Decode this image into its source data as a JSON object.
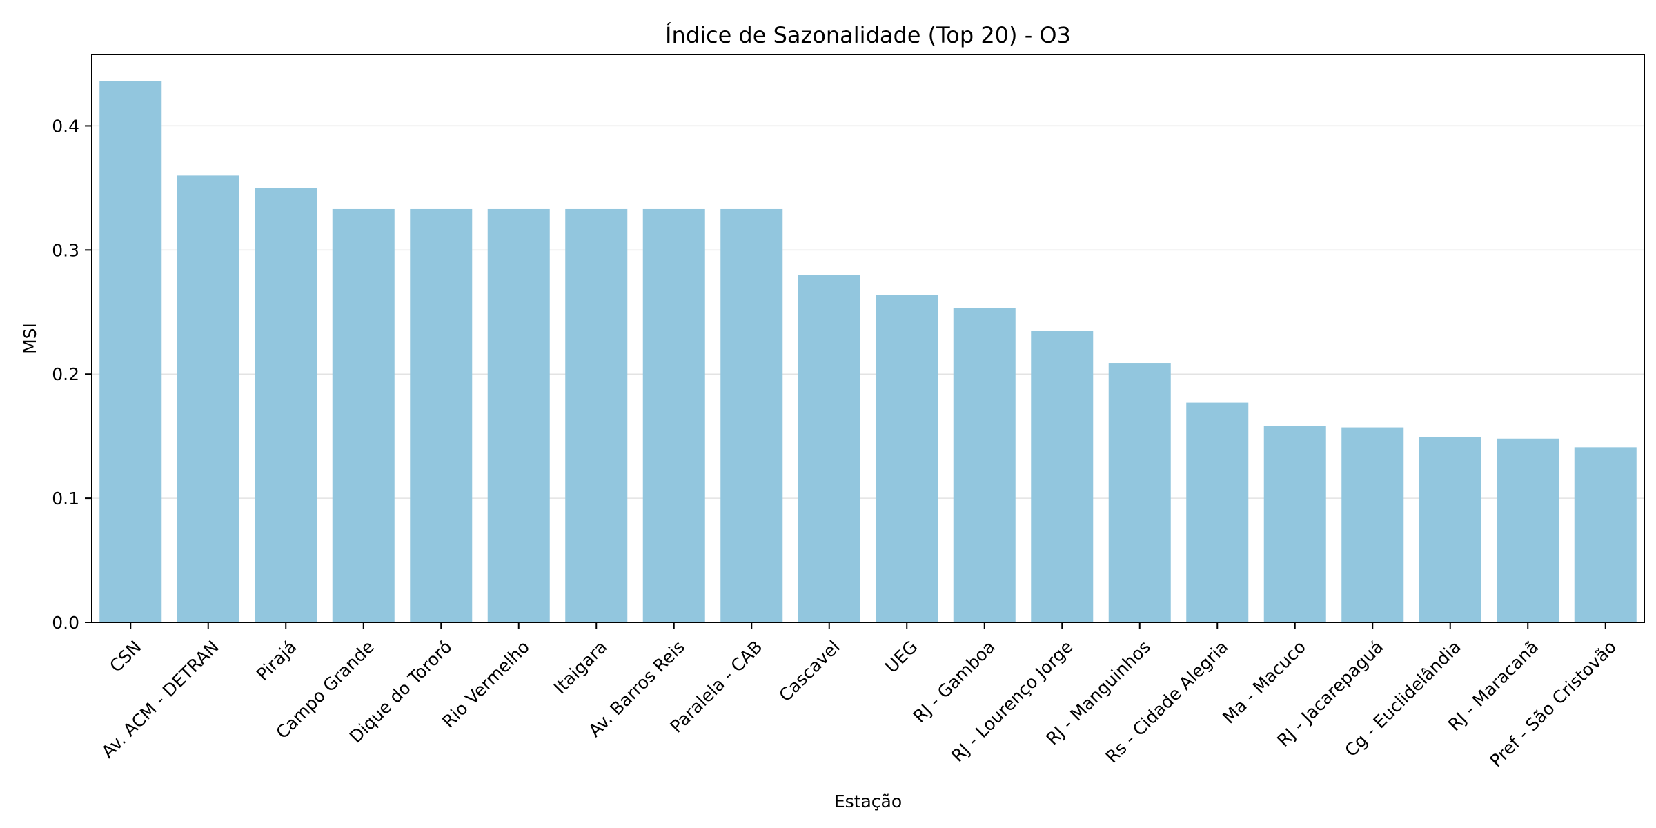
{
  "chart_data": {
    "type": "bar",
    "title": "Índice de Sazonalidade (Top 20) - O3",
    "xlabel": "Estação",
    "ylabel": "MSI",
    "categories": [
      "CSN",
      "Av. ACM - DETRAN",
      "Pirajá",
      "Campo Grande",
      "Dique do Tororó",
      "Rio Vermelho",
      "Itaigara",
      "Av. Barros Reis",
      "Paralela - CAB",
      "Cascavel",
      "UEG",
      "RJ - Gamboa",
      "RJ - Lourenço Jorge",
      "RJ - Manguinhos",
      "Rs - Cidade Alegria",
      "Ma - Macuco",
      "RJ - Jacarepaguá",
      "Cg - Euclidelândia",
      "RJ - Maracanã",
      "Pref - São Cristovão"
    ],
    "values": [
      0.436,
      0.36,
      0.35,
      0.333,
      0.333,
      0.333,
      0.333,
      0.333,
      0.333,
      0.28,
      0.264,
      0.253,
      0.235,
      0.209,
      0.177,
      0.158,
      0.157,
      0.149,
      0.148,
      0.141
    ],
    "ylim": [
      0,
      0.4575
    ],
    "yticks": [
      0.0,
      0.1,
      0.2,
      0.3,
      0.4
    ],
    "ytick_labels": [
      "0.0",
      "0.1",
      "0.2",
      "0.3",
      "0.4"
    ],
    "grid": "y",
    "legend": "none",
    "bar_color": "#92c6de",
    "grid_color": "#e3e3e3",
    "axis_color": "#000000"
  }
}
